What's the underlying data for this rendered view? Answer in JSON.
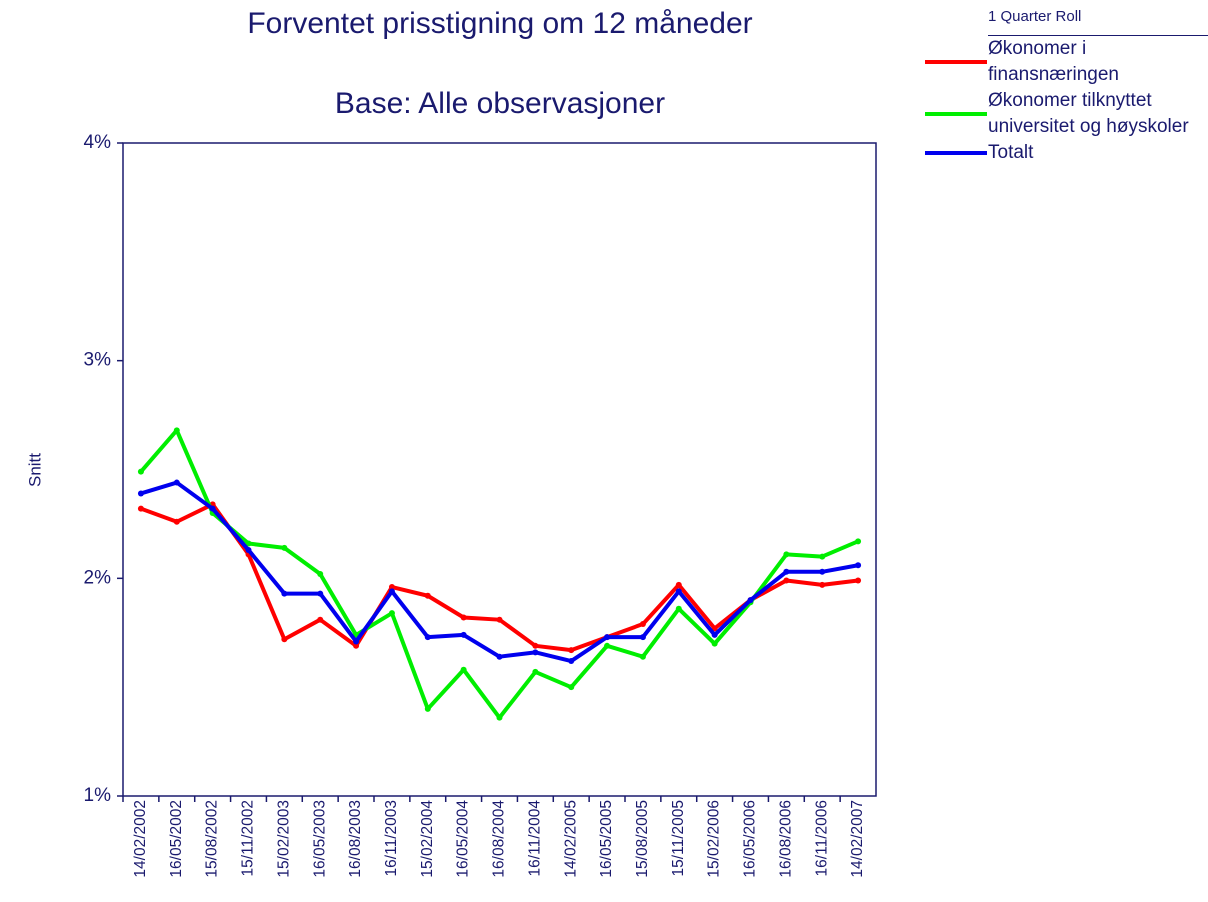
{
  "chart_data": {
    "type": "line",
    "title": "Forventet prisstigning om 12 måneder",
    "subtitle": "Base: Alle observasjoner",
    "y_label": "Snitt",
    "legend_title": "1 Quarter Roll",
    "categories": [
      "14/02/2002",
      "16/05/2002",
      "15/08/2002",
      "15/11/2002",
      "15/02/2003",
      "16/05/2003",
      "16/08/2003",
      "16/11/2003",
      "15/02/2004",
      "16/05/2004",
      "16/08/2004",
      "16/11/2004",
      "14/02/2005",
      "16/05/2005",
      "15/08/2005",
      "15/11/2005",
      "15/02/2006",
      "16/05/2006",
      "16/08/2006",
      "16/11/2006",
      "14/02/2007"
    ],
    "series": [
      {
        "name": "Økonomer i finansnæringen",
        "color": "#ff0000",
        "values": [
          2.32,
          2.26,
          2.34,
          2.11,
          1.72,
          1.81,
          1.69,
          1.96,
          1.92,
          1.82,
          1.81,
          1.69,
          1.67,
          1.73,
          1.79,
          1.97,
          1.77,
          1.9,
          1.99,
          1.97,
          1.99
        ]
      },
      {
        "name": "Økonomer tilknyttet universitet og høyskoler",
        "color": "#00ee00",
        "values": [
          2.49,
          2.68,
          2.3,
          2.16,
          2.14,
          2.02,
          1.74,
          1.84,
          1.4,
          1.58,
          1.36,
          1.57,
          1.5,
          1.69,
          1.64,
          1.86,
          1.7,
          1.89,
          2.11,
          2.1,
          2.17
        ]
      },
      {
        "name": "Totalt",
        "color": "#0000ee",
        "values": [
          2.39,
          2.44,
          2.32,
          2.13,
          1.93,
          1.93,
          1.71,
          1.94,
          1.73,
          1.74,
          1.64,
          1.66,
          1.62,
          1.73,
          1.73,
          1.94,
          1.74,
          1.9,
          2.03,
          2.03,
          2.06
        ]
      }
    ],
    "ylim": [
      1,
      4
    ],
    "yticks": [
      {
        "value": 1,
        "label": "1%"
      },
      {
        "value": 2,
        "label": "2%"
      },
      {
        "value": 3,
        "label": "3%"
      },
      {
        "value": 4,
        "label": "4%"
      }
    ],
    "grid": false
  }
}
